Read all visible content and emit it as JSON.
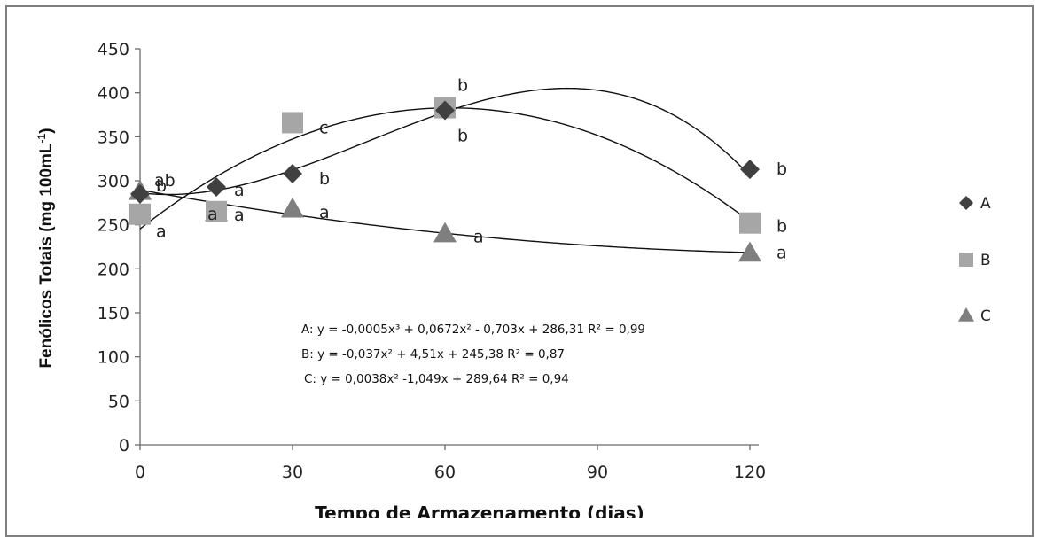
{
  "chart_data": {
    "type": "scatter",
    "xlabel": "Tempo de Armazenamento (dias)",
    "ylabel": "Fenólicos Totais (mg 100mL-1)",
    "ylabel_main": "Fenólicos Totais (mg 100mL",
    "ylabel_sup": "-1",
    "ylabel_close": ")",
    "x_ticks": [
      0,
      30,
      60,
      90,
      120
    ],
    "y_ticks": [
      0,
      50,
      100,
      150,
      200,
      250,
      300,
      350,
      400,
      450
    ],
    "xlim": [
      0,
      120
    ],
    "ylim": [
      0,
      450
    ],
    "grid": false,
    "legend_position": "right",
    "series": [
      {
        "name": "A",
        "marker": "diamond",
        "color": "#404040",
        "x": [
          0,
          15,
          30,
          60,
          120
        ],
        "y": [
          285,
          293,
          308,
          380,
          313
        ],
        "labels": [
          "b",
          "a",
          "b",
          "b",
          "b"
        ],
        "equation": "A: y = -0,0005x³ + 0,0672x² - 0,703x + 286,31  R² = 0,99",
        "fit_coefficients": [
          -0.0005,
          0.0672,
          -0.703,
          286.31
        ]
      },
      {
        "name": "B",
        "marker": "square",
        "color": "#a6a6a6",
        "x": [
          0,
          15,
          30,
          60,
          120
        ],
        "y": [
          262,
          265,
          366,
          383,
          252
        ],
        "labels": [
          "a",
          "a",
          "c",
          "b",
          "b"
        ],
        "equation": "B: y = -0,037x² + 4,51x + 245,38  R² = 0,87",
        "fit_coefficients": [
          0,
          -0.037,
          4.51,
          245.38
        ]
      },
      {
        "name": "C",
        "marker": "triangle",
        "color": "#7f7f7f",
        "x": [
          0,
          15,
          30,
          60,
          120
        ],
        "y": [
          288,
          264,
          268,
          240,
          218
        ],
        "labels": [
          "ab",
          "a",
          "a",
          "a",
          "a"
        ],
        "equation": "C: y = 0,0038x² -1,049x + 289,64  R² = 0,94",
        "fit_coefficients": [
          0,
          0.0038,
          -1.049,
          289.64
        ]
      }
    ]
  }
}
